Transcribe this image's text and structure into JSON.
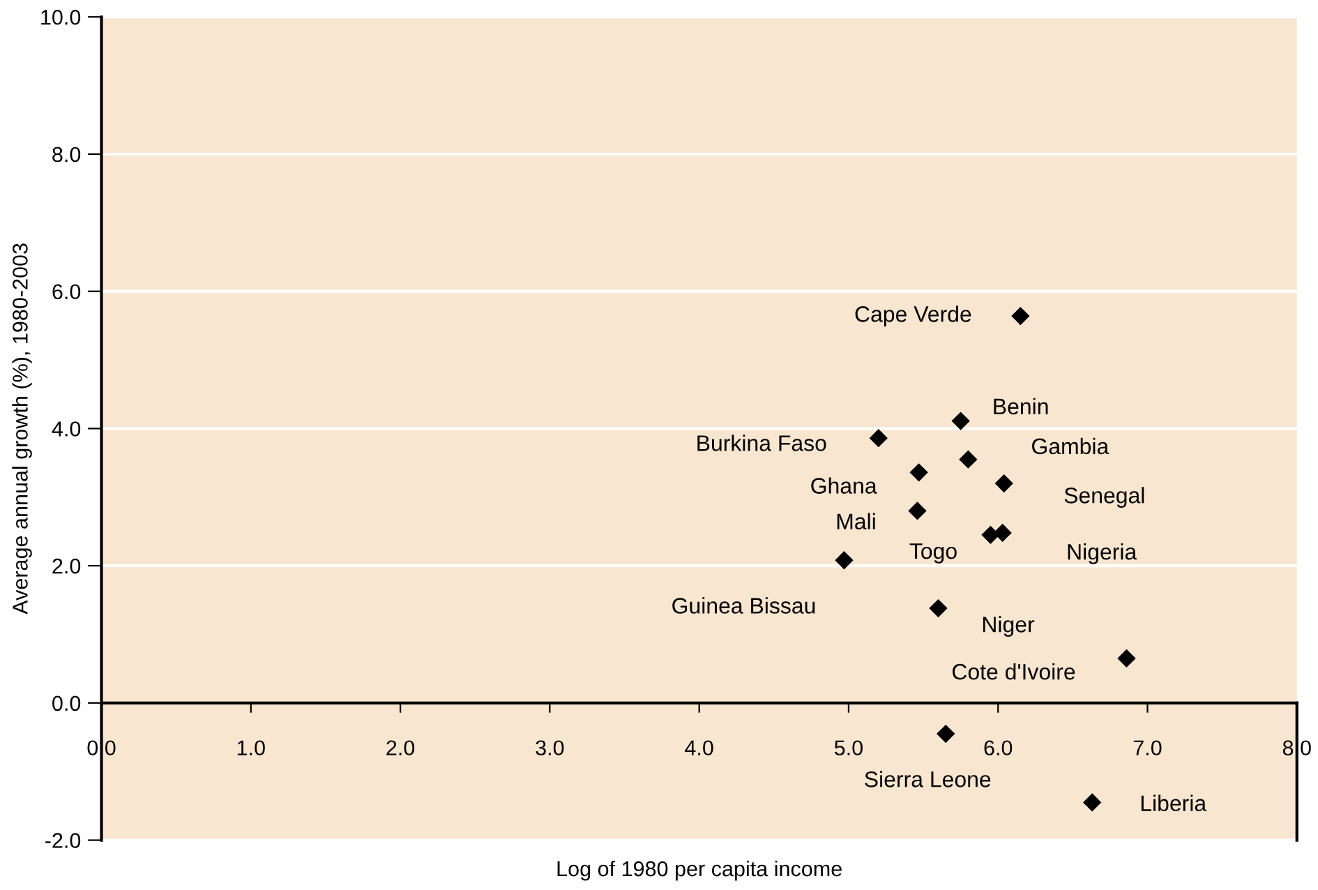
{
  "chart_data": {
    "type": "scatter",
    "xlabel": "Log of 1980 per capita income",
    "ylabel": "Average annual growth (%), 1980-2003",
    "x": [
      6.15,
      5.75,
      5.2,
      5.8,
      5.47,
      6.04,
      5.46,
      5.95,
      6.03,
      4.97,
      5.6,
      6.86,
      5.65,
      6.63
    ],
    "series": [
      {
        "color": "#000000",
        "values": [
          5.64,
          4.11,
          3.86,
          3.55,
          3.36,
          3.2,
          2.8,
          2.45,
          2.48,
          2.08,
          1.38,
          0.65,
          -0.45,
          -1.45
        ]
      }
    ],
    "marker": "diamond",
    "xlim": [
      0,
      8
    ],
    "ylim": [
      -2,
      10
    ],
    "xticks": [
      {
        "value": 0,
        "label": "0.0"
      },
      {
        "value": 1,
        "label": "1.0"
      },
      {
        "value": 2,
        "label": "2.0"
      },
      {
        "value": 3,
        "label": "3.0"
      },
      {
        "value": 4,
        "label": "4.0"
      },
      {
        "value": 5,
        "label": "5.0"
      },
      {
        "value": 6,
        "label": "6.0"
      },
      {
        "value": 7,
        "label": "7.0"
      },
      {
        "value": 8,
        "label": "8.0"
      }
    ],
    "yticks": [
      {
        "value": -2,
        "label": "-2.0"
      },
      {
        "value": 0,
        "label": "0.0"
      },
      {
        "value": 2,
        "label": "2.0"
      },
      {
        "value": 4,
        "label": "4.0"
      },
      {
        "value": 6,
        "label": "6.0"
      },
      {
        "value": 8,
        "label": "8.0"
      },
      {
        "value": 10,
        "label": "10.0"
      }
    ],
    "grid": "y",
    "annotations": [
      "Cape Verde",
      "Benin",
      "Burkina Faso",
      "Gambia",
      "Ghana",
      "Senegal",
      "Mali",
      "Togo",
      "Nigeria",
      "Guinea Bissau",
      "Niger",
      "Cote d'Ivoire",
      "Sierra Leone",
      "Liberia"
    ]
  }
}
